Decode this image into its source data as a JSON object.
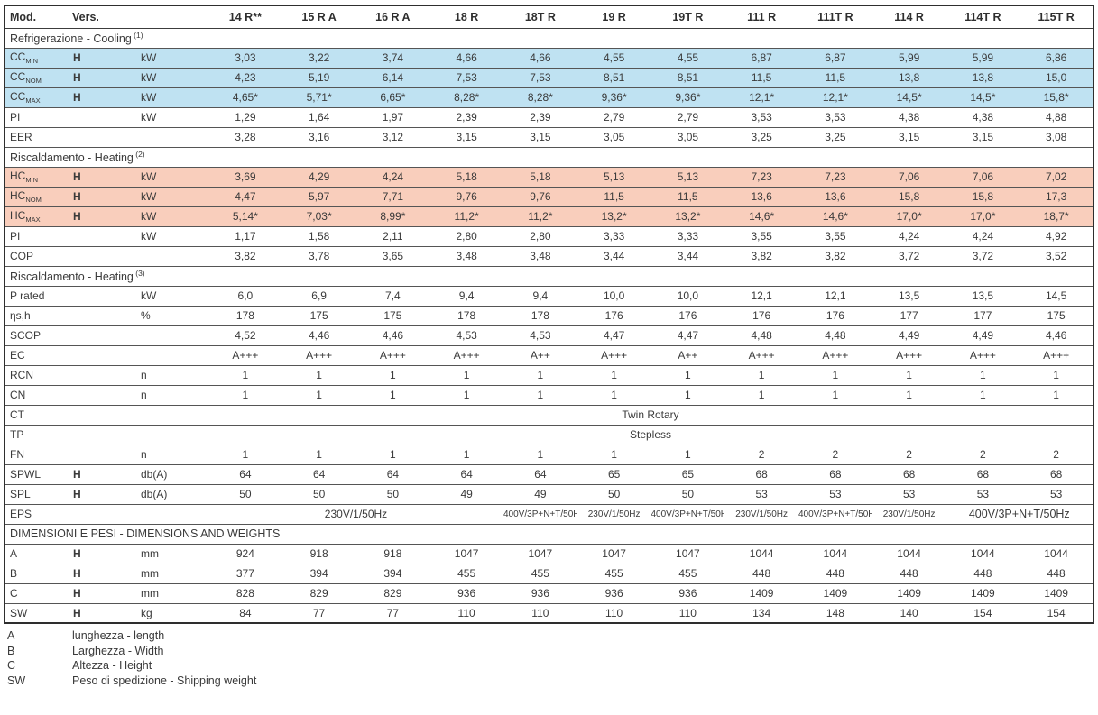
{
  "colors": {
    "cooling_highlight": "#BFE2F2",
    "heating_highlight": "#F9CEBC"
  },
  "header": {
    "col_mod": "Mod.",
    "col_vers": "Vers.",
    "models": [
      "14 R**",
      "15 R A",
      "16 R A",
      "18 R",
      "18T R",
      "19 R",
      "19T R",
      "111 R",
      "111T R",
      "114 R",
      "114T R",
      "115T R"
    ]
  },
  "table": {
    "rows": [
      {
        "type": "section",
        "label": "Refrigerazione - Cooling",
        "sup": "(1)"
      },
      {
        "type": "data",
        "label": "CC",
        "sub": "MIN",
        "vers": "H",
        "unit": "kW",
        "highlight": "blue",
        "values": [
          "3,03",
          "3,22",
          "3,74",
          "4,66",
          "4,66",
          "4,55",
          "4,55",
          "6,87",
          "6,87",
          "5,99",
          "5,99",
          "6,86"
        ]
      },
      {
        "type": "data",
        "label": "CC",
        "sub": "NOM",
        "vers": "H",
        "unit": "kW",
        "highlight": "blue",
        "values": [
          "4,23",
          "5,19",
          "6,14",
          "7,53",
          "7,53",
          "8,51",
          "8,51",
          "11,5",
          "11,5",
          "13,8",
          "13,8",
          "15,0"
        ]
      },
      {
        "type": "data",
        "label": "CC",
        "sub": "MAX",
        "vers": "H",
        "unit": "kW",
        "highlight": "blue",
        "values": [
          "4,65*",
          "5,71*",
          "6,65*",
          "8,28*",
          "8,28*",
          "9,36*",
          "9,36*",
          "12,1*",
          "12,1*",
          "14,5*",
          "14,5*",
          "15,8*"
        ]
      },
      {
        "type": "data",
        "label": "PI",
        "vers": "",
        "unit": "kW",
        "values": [
          "1,29",
          "1,64",
          "1,97",
          "2,39",
          "2,39",
          "2,79",
          "2,79",
          "3,53",
          "3,53",
          "4,38",
          "4,38",
          "4,88"
        ]
      },
      {
        "type": "data",
        "label": "EER",
        "vers": "",
        "unit": "",
        "values": [
          "3,28",
          "3,16",
          "3,12",
          "3,15",
          "3,15",
          "3,05",
          "3,05",
          "3,25",
          "3,25",
          "3,15",
          "3,15",
          "3,08"
        ]
      },
      {
        "type": "section",
        "label": "Riscaldamento - Heating",
        "sup": "(2)"
      },
      {
        "type": "data",
        "label": "HC",
        "sub": "MIN",
        "vers": "H",
        "unit": "kW",
        "highlight": "red",
        "values": [
          "3,69",
          "4,29",
          "4,24",
          "5,18",
          "5,18",
          "5,13",
          "5,13",
          "7,23",
          "7,23",
          "7,06",
          "7,06",
          "7,02"
        ]
      },
      {
        "type": "data",
        "label": "HC",
        "sub": "NOM",
        "vers": "H",
        "unit": "kW",
        "highlight": "red",
        "values": [
          "4,47",
          "5,97",
          "7,71",
          "9,76",
          "9,76",
          "11,5",
          "11,5",
          "13,6",
          "13,6",
          "15,8",
          "15,8",
          "17,3"
        ]
      },
      {
        "type": "data",
        "label": "HC",
        "sub": "MAX",
        "vers": "H",
        "unit": "kW",
        "highlight": "red",
        "values": [
          "5,14*",
          "7,03*",
          "8,99*",
          "11,2*",
          "11,2*",
          "13,2*",
          "13,2*",
          "14,6*",
          "14,6*",
          "17,0*",
          "17,0*",
          "18,7*"
        ]
      },
      {
        "type": "data",
        "label": "PI",
        "vers": "",
        "unit": "kW",
        "values": [
          "1,17",
          "1,58",
          "2,11",
          "2,80",
          "2,80",
          "3,33",
          "3,33",
          "3,55",
          "3,55",
          "4,24",
          "4,24",
          "4,92"
        ]
      },
      {
        "type": "data",
        "label": "COP",
        "vers": "",
        "unit": "",
        "values": [
          "3,82",
          "3,78",
          "3,65",
          "3,48",
          "3,48",
          "3,44",
          "3,44",
          "3,82",
          "3,82",
          "3,72",
          "3,72",
          "3,52"
        ]
      },
      {
        "type": "section",
        "label": "Riscaldamento - Heating",
        "sup": "(3)"
      },
      {
        "type": "data",
        "label": "P rated",
        "vers": "",
        "unit": "kW",
        "values": [
          "6,0",
          "6,9",
          "7,4",
          "9,4",
          "9,4",
          "10,0",
          "10,0",
          "12,1",
          "12,1",
          "13,5",
          "13,5",
          "14,5"
        ]
      },
      {
        "type": "data",
        "label": "ηs,h",
        "vers": "",
        "unit": "%",
        "values": [
          "178",
          "175",
          "175",
          "178",
          "178",
          "176",
          "176",
          "176",
          "176",
          "177",
          "177",
          "175"
        ]
      },
      {
        "type": "data",
        "label": "SCOP",
        "vers": "",
        "unit": "",
        "values": [
          "4,52",
          "4,46",
          "4,46",
          "4,53",
          "4,53",
          "4,47",
          "4,47",
          "4,48",
          "4,48",
          "4,49",
          "4,49",
          "4,46"
        ]
      },
      {
        "type": "data",
        "label": "EC",
        "vers": "",
        "unit": "",
        "values": [
          "A+++",
          "A+++",
          "A+++",
          "A+++",
          "A++",
          "A+++",
          "A++",
          "A+++",
          "A+++",
          "A+++",
          "A+++",
          "A+++"
        ]
      },
      {
        "type": "data",
        "label": "RCN",
        "vers": "",
        "unit": "n",
        "values": [
          "1",
          "1",
          "1",
          "1",
          "1",
          "1",
          "1",
          "1",
          "1",
          "1",
          "1",
          "1"
        ]
      },
      {
        "type": "data",
        "label": "CN",
        "vers": "",
        "unit": "n",
        "values": [
          "1",
          "1",
          "1",
          "1",
          "1",
          "1",
          "1",
          "1",
          "1",
          "1",
          "1",
          "1"
        ]
      },
      {
        "type": "data",
        "label": "CT",
        "vers": "",
        "unit": "",
        "spans": [
          {
            "span": 12,
            "text": "Twin Rotary"
          }
        ]
      },
      {
        "type": "data",
        "label": "TP",
        "vers": "",
        "unit": "",
        "spans": [
          {
            "span": 12,
            "text": "Stepless"
          }
        ]
      },
      {
        "type": "data",
        "label": "FN",
        "vers": "",
        "unit": "n",
        "values": [
          "1",
          "1",
          "1",
          "1",
          "1",
          "1",
          "1",
          "2",
          "2",
          "2",
          "2",
          "2"
        ]
      },
      {
        "type": "data",
        "label": "SPWL",
        "vers": "H",
        "unit": "db(A)",
        "values": [
          "64",
          "64",
          "64",
          "64",
          "64",
          "65",
          "65",
          "68",
          "68",
          "68",
          "68",
          "68"
        ]
      },
      {
        "type": "data",
        "label": "SPL",
        "vers": "H",
        "unit": "db(A)",
        "values": [
          "50",
          "50",
          "50",
          "49",
          "49",
          "50",
          "50",
          "53",
          "53",
          "53",
          "53",
          "53"
        ]
      },
      {
        "type": "data",
        "label": "EPS",
        "vers": "",
        "unit": "",
        "spans": [
          {
            "span": 4,
            "text": "230V/1/50Hz"
          },
          {
            "span": 1,
            "text": "400V/3P+N+T/50Hz"
          },
          {
            "span": 1,
            "text": "230V/1/50Hz"
          },
          {
            "span": 1,
            "text": "400V/3P+N+T/50Hz"
          },
          {
            "span": 1,
            "text": "230V/1/50Hz"
          },
          {
            "span": 1,
            "text": "400V/3P+N+T/50Hz"
          },
          {
            "span": 1,
            "text": "230V/1/50Hz"
          },
          {
            "span": 2,
            "text": "400V/3P+N+T/50Hz"
          }
        ]
      },
      {
        "type": "section",
        "label": "DIMENSIONI E PESI - DIMENSIONS AND WEIGHTS",
        "sup": ""
      },
      {
        "type": "data",
        "label": "A",
        "vers": "H",
        "unit": "mm",
        "values": [
          "924",
          "918",
          "918",
          "1047",
          "1047",
          "1047",
          "1047",
          "1044",
          "1044",
          "1044",
          "1044",
          "1044"
        ]
      },
      {
        "type": "data",
        "label": "B",
        "vers": "H",
        "unit": "mm",
        "values": [
          "377",
          "394",
          "394",
          "455",
          "455",
          "455",
          "455",
          "448",
          "448",
          "448",
          "448",
          "448"
        ]
      },
      {
        "type": "data",
        "label": "C",
        "vers": "H",
        "unit": "mm",
        "values": [
          "828",
          "829",
          "829",
          "936",
          "936",
          "936",
          "936",
          "1409",
          "1409",
          "1409",
          "1409",
          "1409"
        ]
      },
      {
        "type": "data",
        "label": "SW",
        "vers": "H",
        "unit": "kg",
        "values": [
          "84",
          "77",
          "77",
          "110",
          "110",
          "110",
          "110",
          "134",
          "148",
          "140",
          "154",
          "154"
        ]
      }
    ]
  },
  "legend": {
    "items": [
      {
        "code": "A",
        "text": "lunghezza - length"
      },
      {
        "code": "B",
        "text": "Larghezza - Width"
      },
      {
        "code": "C",
        "text": "Altezza - Height"
      },
      {
        "code": "SW",
        "text": "Peso di spedizione - Shipping weight"
      }
    ]
  }
}
